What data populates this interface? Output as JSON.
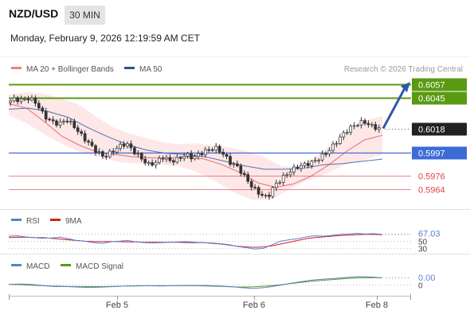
{
  "header": {
    "symbol": "NZD/USD",
    "interval": "30 MIN",
    "datetime": "Monday, February 9, 2026 12:19:59 AM CET"
  },
  "legend": {
    "ma20_bb": "MA 20 + Bollinger Bands",
    "ma50": "MA 50",
    "credit": "Research © 2026 Trading Central"
  },
  "colors": {
    "green": "#5a9a12",
    "blue": "#3d6bd6",
    "red": "#e0424a",
    "candle": "#333333",
    "band": "#fbd3d3",
    "ma50": "#5570b0",
    "ma20": "#e07070",
    "current": "#222222"
  },
  "chart_data": [
    {
      "type": "candlestick",
      "x_ticks": [
        "Feb 5",
        "Feb 6",
        "Feb 8"
      ],
      "y_range": [
        0.5951,
        0.6062
      ],
      "levels": [
        {
          "value": "0.6057",
          "kind": "resistance"
        },
        {
          "value": "0.6045",
          "kind": "resistance"
        },
        {
          "value": "0.6018",
          "kind": "current"
        },
        {
          "value": "0.5997",
          "kind": "pivot"
        },
        {
          "value": "0.5976",
          "kind": "support"
        },
        {
          "value": "0.5964",
          "kind": "support"
        }
      ],
      "close_path": [
        0.6041,
        0.6044,
        0.6043,
        0.6045,
        0.604,
        0.6029,
        0.6024,
        0.6022,
        0.6026,
        0.602,
        0.6012,
        0.6005,
        0.5998,
        0.5993,
        0.5997,
        0.6002,
        0.6005,
        0.5998,
        0.5992,
        0.5986,
        0.5988,
        0.5993,
        0.5989,
        0.5991,
        0.5995,
        0.5992,
        0.5996,
        0.5999,
        0.6001,
        0.5996,
        0.5988,
        0.5984,
        0.5975,
        0.5966,
        0.596,
        0.5957,
        0.5968,
        0.5974,
        0.598,
        0.5984,
        0.5986,
        0.5988,
        0.5992,
        0.5997,
        0.6004,
        0.6012,
        0.6018,
        0.6022,
        0.6024,
        0.602,
        0.6018
      ],
      "bollinger_upper": [
        0.6048,
        0.605,
        0.6049,
        0.6045,
        0.604,
        0.603,
        0.602,
        0.6014,
        0.601,
        0.6006,
        0.6004,
        0.6005,
        0.6003,
        0.6001,
        0.5998,
        0.5993,
        0.5985,
        0.5984,
        0.5992,
        0.6004,
        0.6016,
        0.6025,
        0.6029
      ],
      "bollinger_lower": [
        0.603,
        0.6022,
        0.6012,
        0.6003,
        0.5996,
        0.5992,
        0.5988,
        0.5987,
        0.5986,
        0.5985,
        0.598,
        0.5972,
        0.5962,
        0.5955,
        0.5955,
        0.5964,
        0.5972,
        0.5978,
        0.5986,
        0.599,
        0.5995
      ],
      "ma20": [
        0.604,
        0.6036,
        0.6024,
        0.6011,
        0.6003,
        0.5997,
        0.5995,
        0.5993,
        0.5992,
        0.5992,
        0.5993,
        0.5991,
        0.5986,
        0.5979,
        0.597,
        0.5966,
        0.5969,
        0.5976,
        0.5986,
        0.5998,
        0.6008,
        0.6012
      ],
      "ma50": [
        0.6035,
        0.6036,
        0.6033,
        0.6028,
        0.6019,
        0.6011,
        0.6004,
        0.5999,
        0.5996,
        0.5995,
        0.5993,
        0.5989,
        0.5985,
        0.5982,
        0.5982,
        0.5983,
        0.5986,
        0.5987,
        0.5989,
        0.5991
      ],
      "forecast_arrow": {
        "from": 0.6018,
        "to": 0.6057
      }
    },
    {
      "type": "line",
      "name": "RSI",
      "series": [
        {
          "name": "RSI"
        },
        {
          "name": "9MA"
        }
      ],
      "levels": [
        "70",
        "50",
        "30"
      ],
      "value": "67.03",
      "rsi": [
        62,
        63,
        60,
        58,
        56,
        57,
        59,
        55,
        50,
        48,
        44,
        42,
        46,
        48,
        50,
        46,
        44,
        43,
        44,
        45,
        46,
        47,
        45,
        44,
        43,
        41,
        38,
        33,
        30,
        26,
        28,
        38,
        48,
        52,
        55,
        60,
        63,
        62,
        64,
        67,
        68,
        70,
        68,
        69,
        67
      ],
      "rsi_9ma": [
        58,
        59,
        59,
        58,
        58,
        56,
        54,
        52,
        50,
        48,
        47,
        47,
        47,
        47,
        46,
        46,
        45,
        45,
        45,
        45,
        45,
        44,
        44,
        44,
        42,
        40,
        37,
        34,
        32,
        31,
        32,
        35,
        40,
        45,
        50,
        55,
        58,
        60,
        62,
        64,
        65,
        66,
        67,
        67,
        66
      ]
    },
    {
      "type": "line",
      "name": "MACD",
      "series": [
        {
          "name": "MACD"
        },
        {
          "name": "MACD Signal"
        }
      ],
      "value": "0.00",
      "macd": [
        0.0,
        0.2,
        0.0,
        -0.6,
        -1.0,
        -1.0,
        -1.2,
        -1.4,
        -1.2,
        -1.0,
        -0.8,
        -0.6,
        -0.6,
        -0.7,
        -0.6,
        -0.5,
        -0.5,
        -0.5,
        -0.7,
        -1.0,
        -1.5,
        -1.8,
        -1.4,
        -0.6,
        0.4,
        1.2,
        2.0,
        2.4,
        2.8,
        3.2,
        3.6,
        3.4,
        3.0
      ],
      "signal": [
        0.0,
        -0.1,
        -0.4,
        -0.6,
        -0.8,
        -0.9,
        -1.0,
        -1.0,
        -1.0,
        -0.9,
        -0.8,
        -0.7,
        -0.6,
        -0.6,
        -0.6,
        -0.6,
        -0.6,
        -0.7,
        -0.9,
        -1.1,
        -1.2,
        -1.1,
        -0.8,
        -0.3,
        0.3,
        0.9,
        1.5,
        1.9,
        2.3,
        2.7,
        3.0,
        3.1,
        3.0
      ]
    }
  ]
}
